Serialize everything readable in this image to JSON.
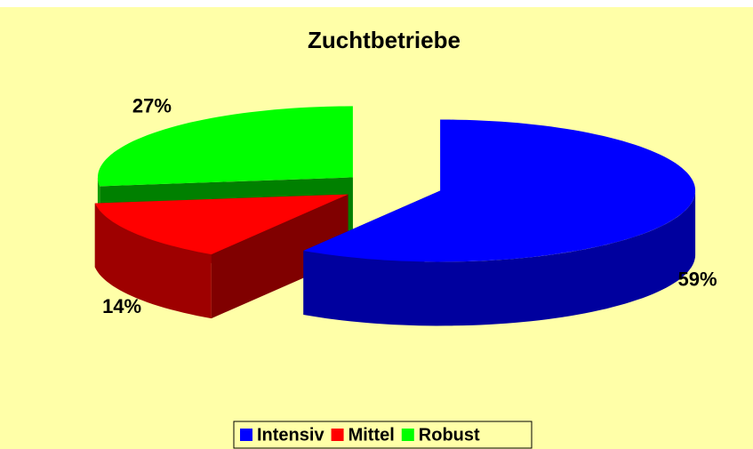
{
  "chart_data": {
    "type": "pie3d",
    "title": "Zuchtbetriebe",
    "categories": [
      "Intensiv",
      "Mittel",
      "Robust"
    ],
    "values": [
      59,
      14,
      27
    ],
    "value_labels": [
      "59%",
      "14%",
      "27%"
    ],
    "colors": [
      "#0000ff",
      "#ff0000",
      "#00ff00"
    ],
    "legend": "bottom"
  }
}
